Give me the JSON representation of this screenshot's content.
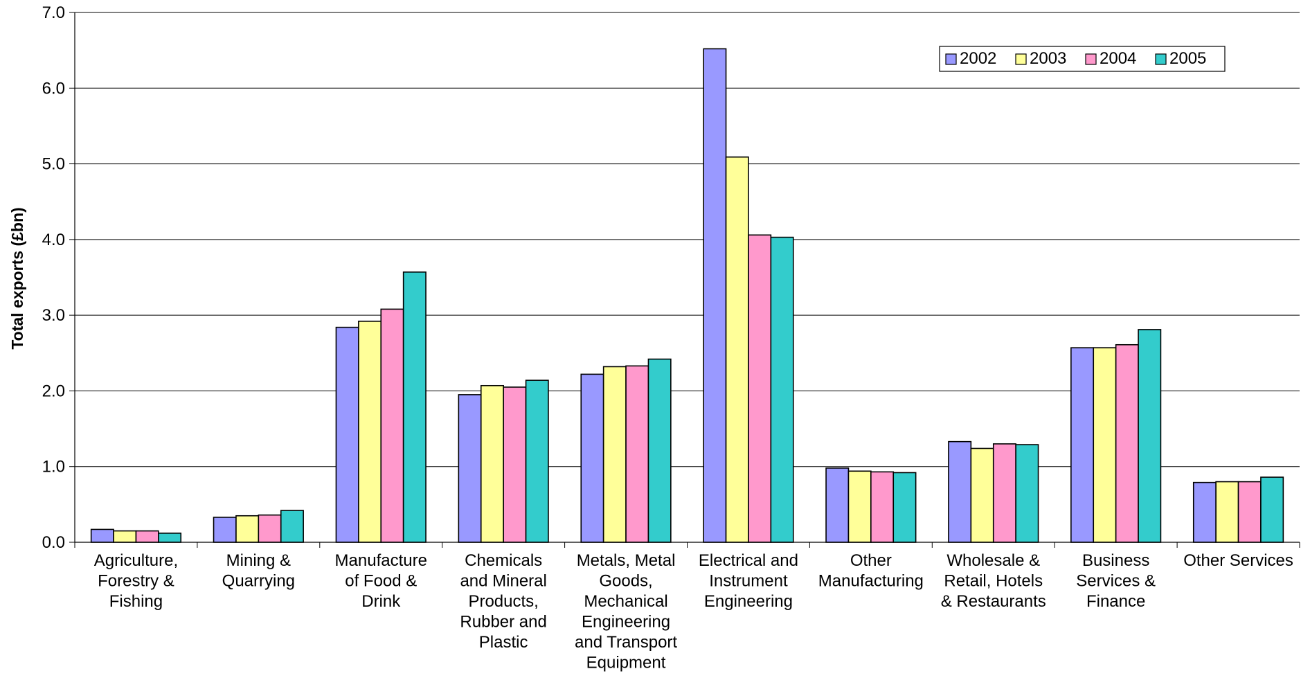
{
  "chart_data": {
    "type": "bar",
    "title": "",
    "xlabel": "",
    "ylabel": "Total exports (£bn)",
    "ylim": [
      0,
      7
    ],
    "yticks": [
      "0.0",
      "1.0",
      "2.0",
      "3.0",
      "4.0",
      "5.0",
      "6.0",
      "7.0"
    ],
    "grid": true,
    "legend_position": "top-right",
    "categories": [
      [
        "Agriculture,",
        "Forestry &",
        "Fishing"
      ],
      [
        "Mining &",
        "Quarrying"
      ],
      [
        "Manufacture",
        "of Food &",
        "Drink"
      ],
      [
        "Chemicals",
        "and Mineral",
        "Products,",
        "Rubber and",
        "Plastic"
      ],
      [
        "Metals, Metal",
        "Goods,",
        "Mechanical",
        "Engineering",
        "and Transport",
        "Equipment"
      ],
      [
        "Electrical and",
        "Instrument",
        "Engineering"
      ],
      [
        "Other",
        "Manufacturing"
      ],
      [
        "Wholesale &",
        "Retail, Hotels",
        "& Restaurants"
      ],
      [
        "Business",
        "Services &",
        "Finance"
      ],
      [
        "Other Services"
      ]
    ],
    "series": [
      {
        "name": "2002",
        "color": "#9999FF",
        "values": [
          0.17,
          0.33,
          2.84,
          1.95,
          2.22,
          6.52,
          0.98,
          1.33,
          2.57,
          0.79
        ]
      },
      {
        "name": "2003",
        "color": "#FFFF99",
        "values": [
          0.15,
          0.35,
          2.92,
          2.07,
          2.32,
          5.09,
          0.94,
          1.24,
          2.57,
          0.8
        ]
      },
      {
        "name": "2004",
        "color": "#FF99CC",
        "values": [
          0.15,
          0.36,
          3.08,
          2.05,
          2.33,
          4.06,
          0.93,
          1.3,
          2.61,
          0.8
        ]
      },
      {
        "name": "2005",
        "color": "#33CCCC",
        "values": [
          0.12,
          0.42,
          3.57,
          2.14,
          2.42,
          4.03,
          0.92,
          1.29,
          2.81,
          0.86
        ]
      }
    ]
  }
}
